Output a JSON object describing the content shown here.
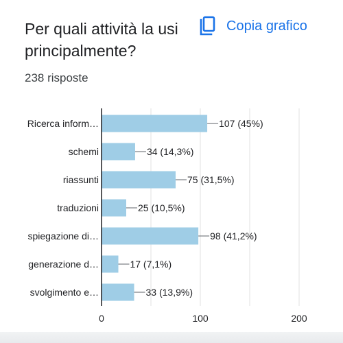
{
  "question": "Per quali attività la usi principalmente?",
  "copy_button": {
    "label": "Copia grafico",
    "icon": "copy-icon"
  },
  "responses_count": "238 risposte",
  "colors": {
    "bar": "#9fcde6",
    "accent": "#1a73e8",
    "grid": "#e0e0e0",
    "axis": "#202124"
  },
  "chart_data": {
    "type": "bar",
    "orientation": "horizontal",
    "categories": [
      "Ricerca inform…",
      "schemi",
      "riassunti",
      "traduzioni",
      "spiegazione di…",
      "generazione d…",
      "svolgimento e…"
    ],
    "values": [
      107,
      34,
      75,
      25,
      98,
      17,
      33
    ],
    "data_labels": [
      "107 (45%)",
      "34 (14,3%)",
      "75 (31,5%)",
      "25 (10,5%)",
      "98 (41,2%)",
      "17 (7,1%)",
      "33 (13,9%)"
    ],
    "xlim": [
      0,
      200
    ],
    "x_ticks": [
      0,
      100,
      200
    ],
    "grid": true
  }
}
